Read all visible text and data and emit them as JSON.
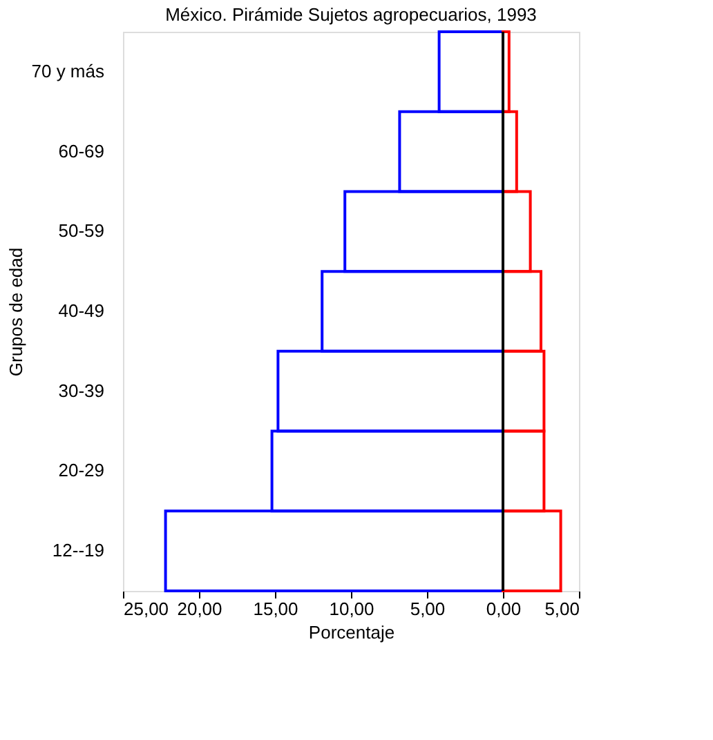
{
  "chart_data": {
    "type": "bar",
    "orientation": "horizontal",
    "title": "México. Pirámide Sujetos agropecuarios, 1993",
    "xlabel": "Porcentaje",
    "ylabel": "Grupos de edad",
    "categories": [
      "70 y más",
      "60-69",
      "50-59",
      "40-49",
      "30-39",
      "20-29",
      "12--19"
    ],
    "series": [
      {
        "color": "#0000ff",
        "values": [
          -4.2,
          -6.8,
          -10.4,
          -11.9,
          -14.8,
          -15.2,
          -22.2
        ]
      },
      {
        "color": "#ff0000",
        "values": [
          0.4,
          0.9,
          1.8,
          2.5,
          2.7,
          2.7,
          3.8
        ]
      }
    ],
    "xlim": [
      -25,
      5
    ],
    "xticks": [
      {
        "value": -25,
        "label": "25,00"
      },
      {
        "value": -20,
        "label": "20,00"
      },
      {
        "value": -15,
        "label": "15,00"
      },
      {
        "value": -10,
        "label": "10,00"
      },
      {
        "value": -5,
        "label": "5,00"
      },
      {
        "value": 0,
        "label": "0,00"
      },
      {
        "value": 5,
        "label": "5,00"
      }
    ],
    "ref_lines": [
      {
        "axis": "x",
        "value": 0,
        "color": "#000000"
      }
    ],
    "grid": false
  }
}
